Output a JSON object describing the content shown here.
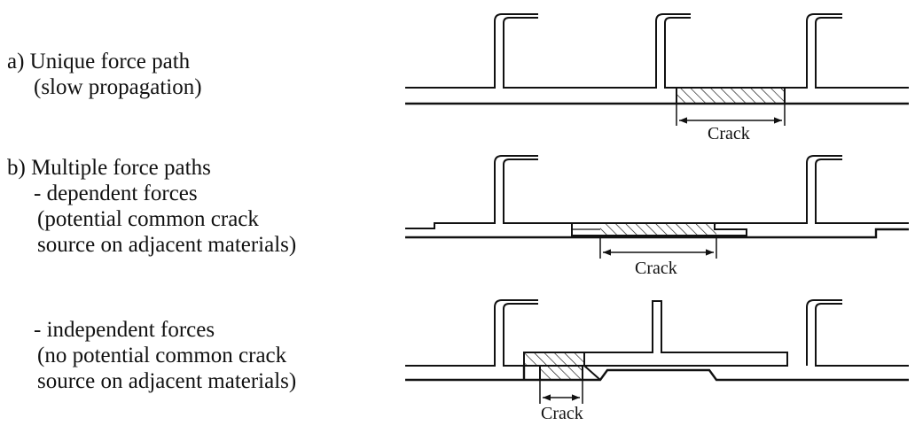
{
  "cases": {
    "a": {
      "line1": "a) Unique force path",
      "line2": "(slow propagation)"
    },
    "b": {
      "line1": "b) Multiple force paths",
      "dependent": {
        "line1": "- dependent forces",
        "line2": "(potential common crack",
        "line3": "source on adjacent materials)"
      },
      "independent": {
        "line1": "- independent forces",
        "line2": "(no potential common crack",
        "line3": "source on adjacent materials)"
      }
    }
  },
  "crack_label": "Crack",
  "colors": {
    "stroke": "#111111",
    "background": "#ffffff"
  }
}
